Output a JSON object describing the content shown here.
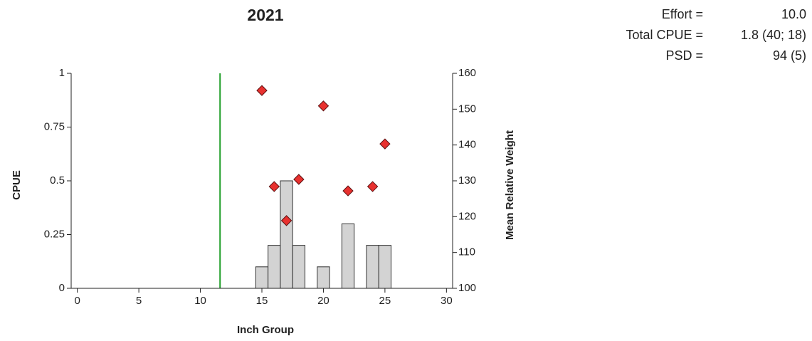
{
  "chart_data": {
    "type": "bar",
    "title": "2021",
    "x_label": "Inch Group",
    "y_label": "CPUE",
    "y2_label": "Mean Relative Weight",
    "x": [
      15,
      16,
      17,
      18,
      20,
      22,
      24,
      25
    ],
    "series": [
      {
        "type": "bar",
        "color": "#d3d3d3",
        "values": [
          0.1,
          0.2,
          0.5,
          0.2,
          0.1,
          0.3,
          0.2,
          0.2
        ]
      },
      {
        "type": "scatter",
        "axis": "y2",
        "color": "#e8312f",
        "values": [
          155.2,
          128.4,
          118.9,
          130.4,
          150.9,
          127.2,
          128.4,
          140.3
        ]
      }
    ],
    "vline": {
      "value": 11.6,
      "color": "#22a02a"
    },
    "xlim": [
      -0.5,
      30.5
    ],
    "xticks": [
      0,
      5,
      10,
      15,
      20,
      25,
      30
    ],
    "ylim": [
      0,
      1
    ],
    "yticks": [
      0,
      0.25,
      0.5,
      0.75,
      1
    ],
    "y2lim": [
      100,
      160
    ],
    "y2ticks": [
      100,
      110,
      120,
      130,
      140,
      150,
      160
    ]
  },
  "stats": [
    {
      "label": "Effort =",
      "value": "10.0"
    },
    {
      "label": "Total CPUE =",
      "value": "1.8 (40; 18)"
    },
    {
      "label": "PSD =",
      "value": "94 (5)"
    }
  ]
}
